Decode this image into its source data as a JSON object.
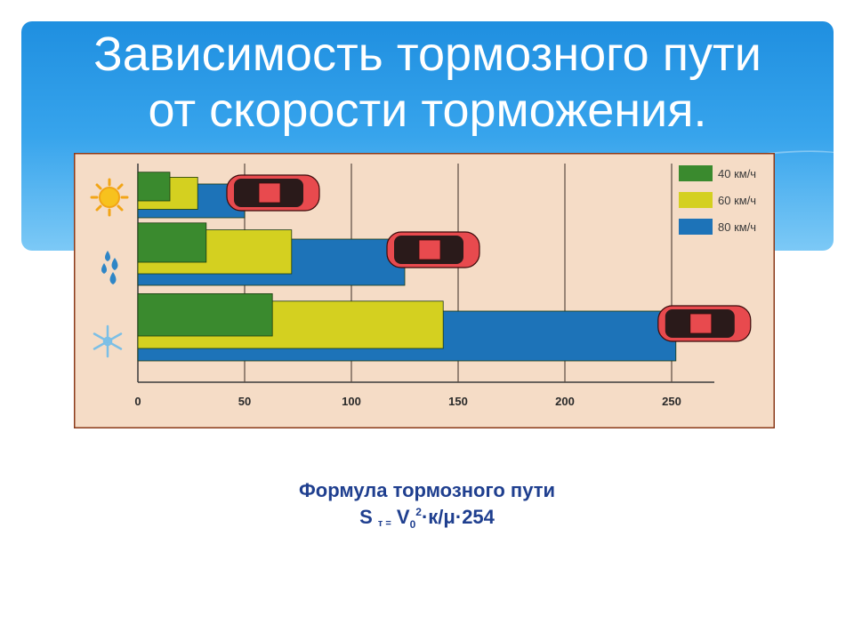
{
  "title": {
    "line1": "Зависимость тормозного пути",
    "line2": "от скорости торможения."
  },
  "chart_data": {
    "type": "bar",
    "orientation": "horizontal",
    "stacking": "overlay",
    "categories": [
      "sun-icon",
      "raindrops-icon",
      "snowflake-icon"
    ],
    "series": [
      {
        "name": "40 км/ч",
        "color": "#3a8a2e",
        "values": [
          15,
          32,
          63
        ]
      },
      {
        "name": "60 км/ч",
        "color": "#d4d020",
        "values": [
          28,
          72,
          143
        ]
      },
      {
        "name": "80 км/ч",
        "color": "#1d73b8",
        "values": [
          50,
          125,
          252
        ]
      }
    ],
    "xticks": [
      0,
      50,
      100,
      150,
      200,
      250
    ],
    "xlim": [
      0,
      270
    ],
    "grid": true,
    "legend_position": "top-right",
    "background": "#f5dcc6"
  },
  "formula": {
    "line1": "Формула тормозного пути",
    "s": "S",
    "sub_t": "т =",
    "v": "V",
    "sub_zero": "0",
    "sup_two": "2",
    "rest": "·к/μ·254"
  }
}
